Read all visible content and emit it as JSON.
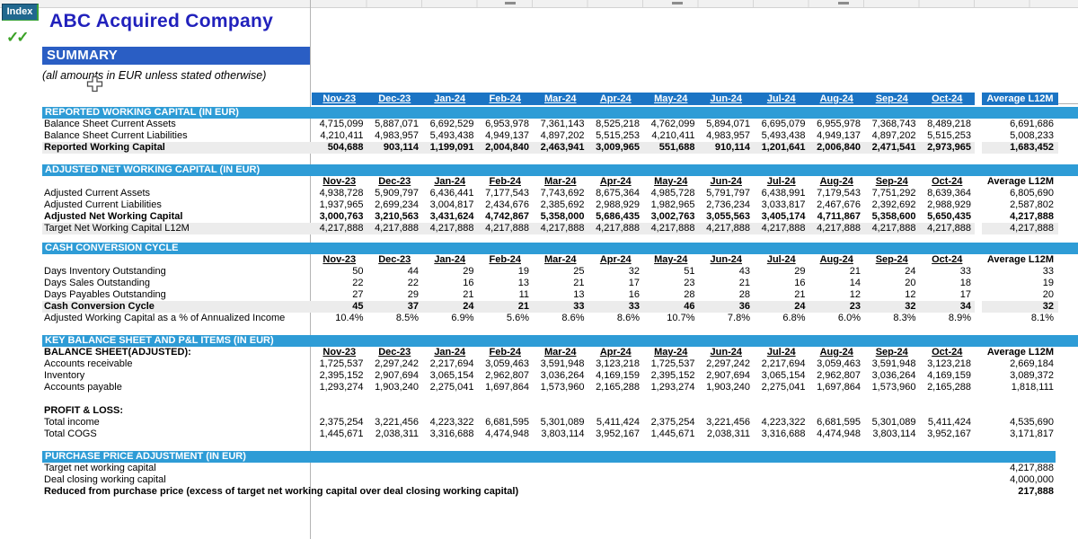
{
  "header": {
    "index_button": "Index",
    "title": "ABC Acquired Company",
    "checkmarks": "✓✓",
    "summary_label": "SUMMARY",
    "note": "(all amounts in EUR unless stated otherwise)"
  },
  "columns": {
    "months": [
      "Nov-23",
      "Dec-23",
      "Jan-24",
      "Feb-24",
      "Mar-24",
      "Apr-24",
      "May-24",
      "Jun-24",
      "Jul-24",
      "Aug-24",
      "Sep-24",
      "Oct-24"
    ],
    "average_label": "Average L12M"
  },
  "sections": [
    {
      "id": "reported",
      "title": "REPORTED WORKING CAPITAL (IN EUR)",
      "subheader": false,
      "rows": [
        {
          "label": "Balance Sheet Current Assets",
          "values": [
            "4,715,099",
            "5,887,071",
            "6,692,529",
            "6,953,978",
            "7,361,143",
            "8,525,218",
            "4,762,099",
            "5,894,071",
            "6,695,079",
            "6,955,978",
            "7,368,743",
            "8,489,218"
          ],
          "avg": "6,691,686"
        },
        {
          "label": "Balance Sheet Current Liabilities",
          "values": [
            "4,210,411",
            "4,983,957",
            "5,493,438",
            "4,949,137",
            "4,897,202",
            "5,515,253",
            "4,210,411",
            "4,983,957",
            "5,493,438",
            "4,949,137",
            "4,897,202",
            "5,515,253"
          ],
          "avg": "5,008,233"
        },
        {
          "label": "Reported Working Capital",
          "bold": true,
          "shaded": true,
          "values": [
            "504,688",
            "903,114",
            "1,199,091",
            "2,004,840",
            "2,463,941",
            "3,009,965",
            "551,688",
            "910,114",
            "1,201,641",
            "2,006,840",
            "2,471,541",
            "2,973,965"
          ],
          "avg": "1,683,452"
        }
      ]
    },
    {
      "id": "adjusted",
      "title": "ADJUSTED NET WORKING CAPITAL (IN EUR)",
      "subheader": true,
      "subheader_label": "",
      "rows": [
        {
          "label": "Adjusted Current Assets",
          "values": [
            "4,938,728",
            "5,909,797",
            "6,436,441",
            "7,177,543",
            "7,743,692",
            "8,675,364",
            "4,985,728",
            "5,791,797",
            "6,438,991",
            "7,179,543",
            "7,751,292",
            "8,639,364"
          ],
          "avg": "6,805,690"
        },
        {
          "label": "Adjusted Current Liabilities",
          "values": [
            "1,937,965",
            "2,699,234",
            "3,004,817",
            "2,434,676",
            "2,385,692",
            "2,988,929",
            "1,982,965",
            "2,736,234",
            "3,033,817",
            "2,467,676",
            "2,392,692",
            "2,988,929"
          ],
          "avg": "2,587,802"
        },
        {
          "label": "Adjusted Net Working Capital",
          "bold": true,
          "values": [
            "3,000,763",
            "3,210,563",
            "3,431,624",
            "4,742,867",
            "5,358,000",
            "5,686,435",
            "3,002,763",
            "3,055,563",
            "3,405,174",
            "4,711,867",
            "5,358,600",
            "5,650,435"
          ],
          "avg": "4,217,888"
        },
        {
          "label": "Target Net Working Capital L12M",
          "shaded": true,
          "values": [
            "4,217,888",
            "4,217,888",
            "4,217,888",
            "4,217,888",
            "4,217,888",
            "4,217,888",
            "4,217,888",
            "4,217,888",
            "4,217,888",
            "4,217,888",
            "4,217,888",
            "4,217,888"
          ],
          "avg": "4,217,888"
        }
      ]
    },
    {
      "id": "ccc",
      "title": "CASH CONVERSION CYCLE",
      "subheader": true,
      "subheader_label": "",
      "rows": [
        {
          "label": "Days Inventory Outstanding",
          "values": [
            "50",
            "44",
            "29",
            "19",
            "25",
            "32",
            "51",
            "43",
            "29",
            "21",
            "24",
            "33"
          ],
          "avg": "33"
        },
        {
          "label": "Days Sales Outstanding",
          "values": [
            "22",
            "22",
            "16",
            "13",
            "21",
            "17",
            "23",
            "21",
            "16",
            "14",
            "20",
            "18"
          ],
          "avg": "19"
        },
        {
          "label": "Days Payables Outstanding",
          "values": [
            "27",
            "29",
            "21",
            "11",
            "13",
            "16",
            "28",
            "28",
            "21",
            "12",
            "12",
            "17"
          ],
          "avg": "20"
        },
        {
          "label": "Cash Conversion Cycle",
          "bold": true,
          "shaded": true,
          "values": [
            "45",
            "37",
            "24",
            "21",
            "33",
            "33",
            "46",
            "36",
            "24",
            "23",
            "32",
            "34"
          ],
          "avg": "32"
        },
        {
          "label": "Adjusted Working Capital as a % of Annualized Income",
          "values": [
            "10.4%",
            "8.5%",
            "6.9%",
            "5.6%",
            "8.6%",
            "8.6%",
            "10.7%",
            "7.8%",
            "6.8%",
            "6.0%",
            "8.3%",
            "8.9%"
          ],
          "avg": "8.1%"
        }
      ]
    },
    {
      "id": "key_items",
      "title": "KEY BALANCE SHEET AND P&L ITEMS (IN EUR)",
      "subheader": true,
      "subheader_label": "BALANCE SHEET(ADJUSTED):",
      "rows": [
        {
          "label": "Accounts receivable",
          "values": [
            "1,725,537",
            "2,297,242",
            "2,217,694",
            "3,059,463",
            "3,591,948",
            "3,123,218",
            "1,725,537",
            "2,297,242",
            "2,217,694",
            "3,059,463",
            "3,591,948",
            "3,123,218"
          ],
          "avg": "2,669,184"
        },
        {
          "label": "Inventory",
          "values": [
            "2,395,152",
            "2,907,694",
            "3,065,154",
            "2,962,807",
            "3,036,264",
            "4,169,159",
            "2,395,152",
            "2,907,694",
            "3,065,154",
            "2,962,807",
            "3,036,264",
            "4,169,159"
          ],
          "avg": "3,089,372"
        },
        {
          "label": "Accounts payable",
          "values": [
            "1,293,274",
            "1,903,240",
            "2,275,041",
            "1,697,864",
            "1,573,960",
            "2,165,288",
            "1,293,274",
            "1,903,240",
            "2,275,041",
            "1,697,864",
            "1,573,960",
            "2,165,288"
          ],
          "avg": "1,818,111"
        },
        {
          "label": "",
          "spacer": true
        },
        {
          "label": "PROFIT & LOSS:",
          "heading": true
        },
        {
          "label": "Total income",
          "values": [
            "2,375,254",
            "3,221,456",
            "4,223,322",
            "6,681,595",
            "5,301,089",
            "5,411,424",
            "2,375,254",
            "3,221,456",
            "4,223,322",
            "6,681,595",
            "5,301,089",
            "5,411,424"
          ],
          "avg": "4,535,690"
        },
        {
          "label": "Total COGS",
          "values": [
            "1,445,671",
            "2,038,311",
            "3,316,688",
            "4,474,948",
            "3,803,114",
            "3,952,167",
            "1,445,671",
            "2,038,311",
            "3,316,688",
            "4,474,948",
            "3,803,114",
            "3,952,167"
          ],
          "avg": "3,171,817"
        }
      ]
    },
    {
      "id": "ppa",
      "title": "PURCHASE PRICE ADJUSTMENT (IN EUR)",
      "subheader": false,
      "band_width": 1128,
      "rows": [
        {
          "label": "Target net working capital",
          "avg": "4,217,888"
        },
        {
          "label": "Deal closing working capital",
          "avg": "4,000,000"
        },
        {
          "label": "Reduced from purchase price (excess of target net working capital over deal closing working capital)",
          "bold": true,
          "avg": "217,888"
        }
      ]
    }
  ],
  "colors": {
    "header_bar": "#1B74C4",
    "section_band": "#2E9CD6",
    "summary_bar": "#2A5EC4",
    "title_text": "#2121BC",
    "index_button": "#21688F",
    "checkmark_green": "#3BA226",
    "shaded_row": "#ECECEC"
  }
}
